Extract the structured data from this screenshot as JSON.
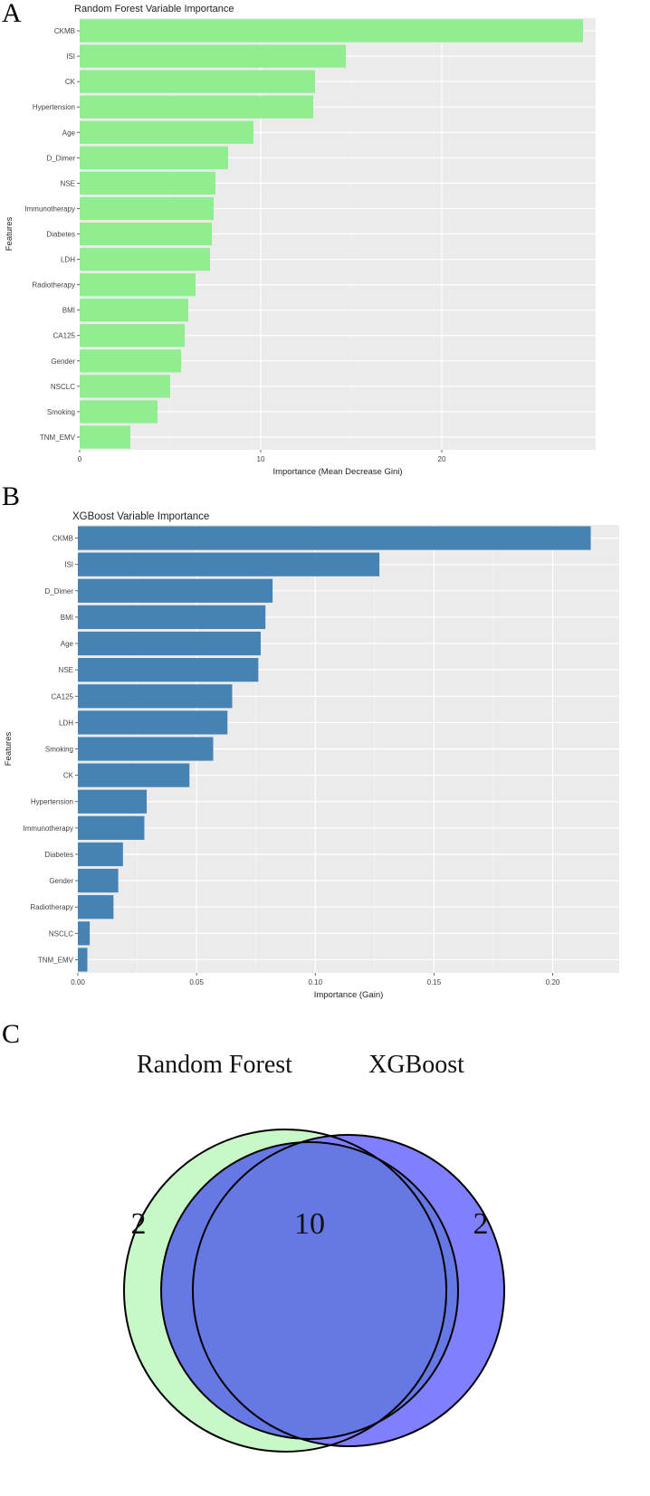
{
  "panels": {
    "a": "A",
    "b": "B",
    "c": "C"
  },
  "colors": {
    "rf_bar": "#90ee90",
    "xgb_bar": "#4682b4",
    "plot_bg": "#ebebeb",
    "grid": "#ffffff",
    "venn_rf": "#c8f7c8",
    "venn_xgb": "#8080ff",
    "venn_overlap": "#6678e4"
  },
  "chart_data": [
    {
      "type": "bar",
      "orientation": "horizontal",
      "title": "Random Forest Variable Importance",
      "xlabel": "Importance (Mean Decrease Gini)",
      "ylabel": "Features",
      "xlim": [
        0,
        28.5
      ],
      "xticks": [
        0,
        10,
        20
      ],
      "xtick_labels": [
        "0",
        "10",
        "20"
      ],
      "categories": [
        "CKMB",
        "ISI",
        "CK",
        "Hypertension",
        "Age",
        "D_Dimer",
        "NSE",
        "Immunotherapy",
        "Diabetes",
        "LDH",
        "Radiotherapy",
        "BMI",
        "CA125",
        "Gender",
        "NSCLC",
        "Smoking",
        "TNM_EMV"
      ],
      "values": [
        27.8,
        14.7,
        13.0,
        12.9,
        9.6,
        8.2,
        7.5,
        7.4,
        7.3,
        7.2,
        6.4,
        6.0,
        5.8,
        5.6,
        5.0,
        4.3,
        2.8
      ],
      "grid": true
    },
    {
      "type": "bar",
      "orientation": "horizontal",
      "title": "XGBoost Variable Importance",
      "xlabel": "Importance (Gain)",
      "ylabel": "Features",
      "xlim": [
        0,
        0.228
      ],
      "xticks": [
        0,
        0.05,
        0.1,
        0.15,
        0.2
      ],
      "xtick_labels": [
        "0.00",
        "0.05",
        "0.10",
        "0.15",
        "0.20"
      ],
      "categories": [
        "CKMB",
        "ISI",
        "D_Dimer",
        "BMI",
        "Age",
        "NSE",
        "CA125",
        "LDH",
        "Smoking",
        "CK",
        "Hypertension",
        "Immunotherapy",
        "Diabetes",
        "Gender",
        "Radiotherapy",
        "NSCLC",
        "TNM_EMV"
      ],
      "values": [
        0.216,
        0.127,
        0.082,
        0.079,
        0.077,
        0.076,
        0.065,
        0.063,
        0.057,
        0.047,
        0.029,
        0.028,
        0.019,
        0.017,
        0.015,
        0.005,
        0.004
      ],
      "grid": true
    },
    {
      "type": "venn",
      "sets": [
        "Random Forest",
        "XGBoost"
      ],
      "only_a": 2,
      "overlap": 10,
      "only_b": 2
    }
  ]
}
